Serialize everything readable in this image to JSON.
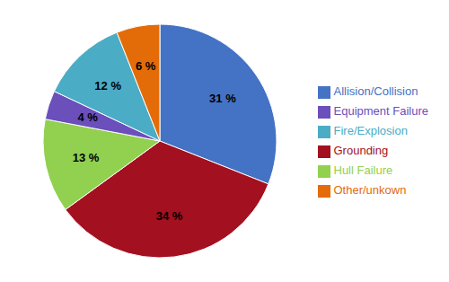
{
  "chart_data": {
    "type": "pie",
    "categories": [
      "Allision/Collision",
      "Grounding",
      "Hull Failure",
      "Equipment Failure",
      "Fire/Explosion",
      "Other/unkown"
    ],
    "values": [
      31,
      34,
      13,
      4,
      12,
      6
    ],
    "value_labels": [
      "31 %",
      "34 %",
      "13 %",
      "4 %",
      "12 %",
      "6 %"
    ],
    "colors": [
      "#4472C4",
      "#A31020",
      "#92D050",
      "#6B4FBB",
      "#4BACC6",
      "#E36C09"
    ],
    "data_labels": true,
    "legend": "right"
  }
}
